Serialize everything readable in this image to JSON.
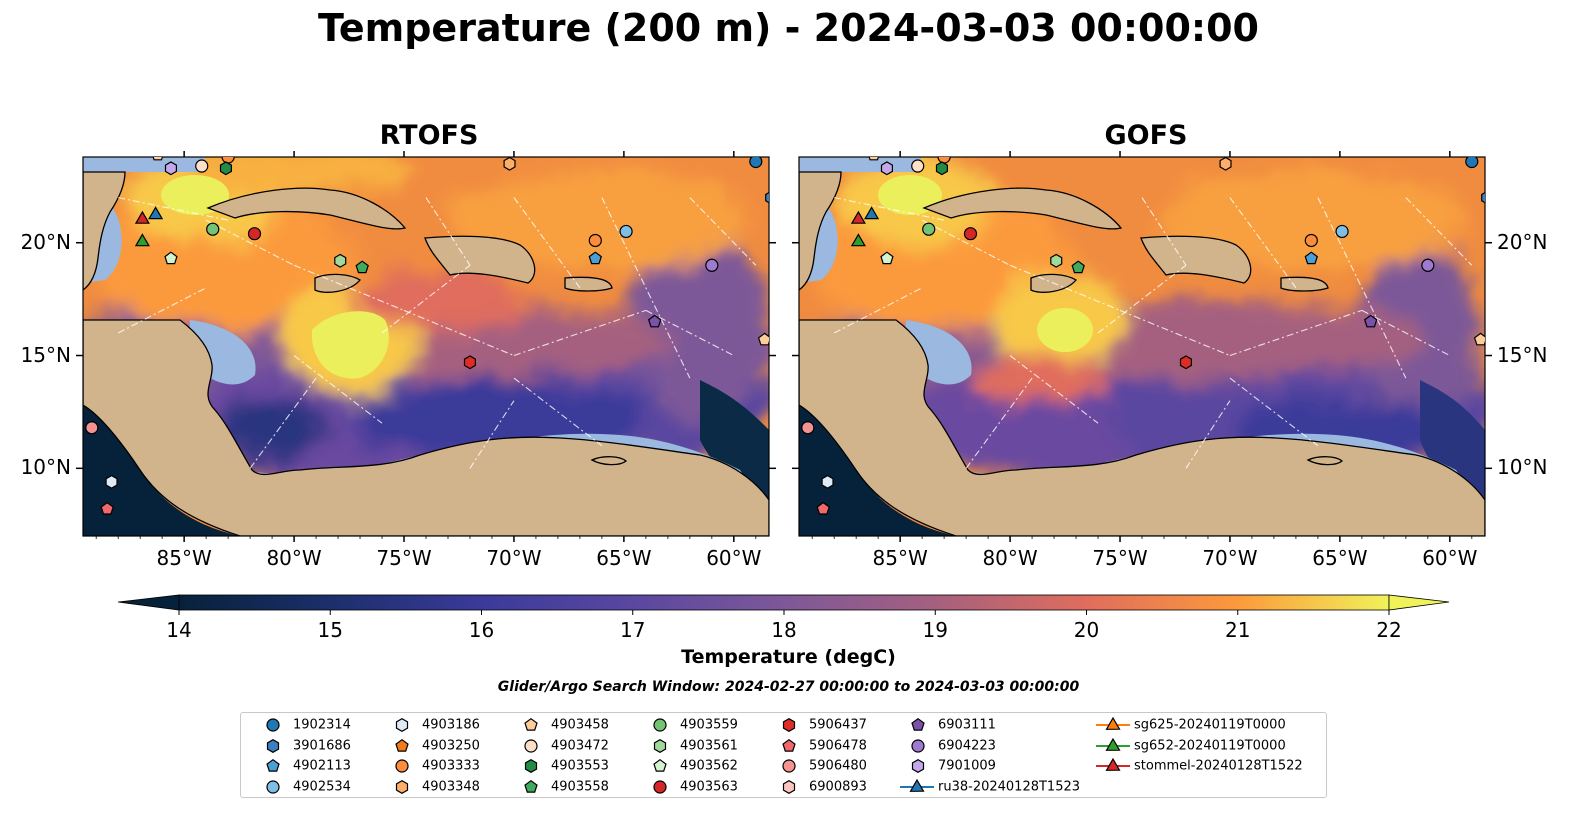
{
  "title": "Temperature (200 m) - 2024-03-03 00:00:00",
  "panels": [
    {
      "title": "RTOFS"
    },
    {
      "title": "GOFS"
    }
  ],
  "axes": {
    "x_ticks": [
      "85°W",
      "80°W",
      "75°W",
      "70°W",
      "65°W",
      "60°W"
    ],
    "y_ticks": [
      "20°N",
      "15°N",
      "10°N"
    ],
    "lon_range": [
      -89.6,
      -58.4
    ],
    "lat_range": [
      7.0,
      23.8
    ]
  },
  "colorbar": {
    "label": "Temperature (degC)",
    "ticks": [
      "14",
      "15",
      "16",
      "17",
      "18",
      "19",
      "20",
      "21",
      "22"
    ],
    "range": [
      14,
      22
    ],
    "step": 0.5,
    "colormap": "thermal",
    "extend": "both"
  },
  "search_window": "Glider/Argo Search Window: 2024-02-27 00:00:00 to 2024-03-03 00:00:00",
  "colors": {
    "land": "#d2b48c",
    "shelf": "#9ab8e0",
    "deep_cold": "#06223a"
  },
  "legend": {
    "columns": [
      [
        {
          "label": "1902314",
          "marker": "circle",
          "color": "#1f77b4"
        },
        {
          "label": "3901686",
          "marker": "hexagon",
          "color": "#3a7fbf"
        },
        {
          "label": "4902113",
          "marker": "pentagon",
          "color": "#4a9fd4"
        },
        {
          "label": "4902534",
          "marker": "circle",
          "color": "#7fbfe6"
        }
      ],
      [
        {
          "label": "4903186",
          "marker": "hexagon",
          "color": "#deeaf6"
        },
        {
          "label": "4903250",
          "marker": "pentagon",
          "color": "#f07b18"
        },
        {
          "label": "4903333",
          "marker": "circle",
          "color": "#fd8d3c"
        },
        {
          "label": "4903348",
          "marker": "hexagon",
          "color": "#fdae6b"
        }
      ],
      [
        {
          "label": "4903458",
          "marker": "pentagon",
          "color": "#fdcc9a"
        },
        {
          "label": "4903472",
          "marker": "circle",
          "color": "#fee0c8"
        },
        {
          "label": "4903553",
          "marker": "hexagon",
          "color": "#238b45"
        },
        {
          "label": "4903558",
          "marker": "pentagon",
          "color": "#41ab5d"
        }
      ],
      [
        {
          "label": "4903559",
          "marker": "circle",
          "color": "#74c476"
        },
        {
          "label": "4903561",
          "marker": "hexagon",
          "color": "#a1d99b"
        },
        {
          "label": "4903562",
          "marker": "pentagon",
          "color": "#d4f2cc"
        },
        {
          "label": "4903563",
          "marker": "circle",
          "color": "#d62728"
        }
      ],
      [
        {
          "label": "5906437",
          "marker": "hexagon",
          "color": "#de2d26"
        },
        {
          "label": "5906478",
          "marker": "pentagon",
          "color": "#f0686a"
        },
        {
          "label": "5906480",
          "marker": "circle",
          "color": "#f4938f"
        },
        {
          "label": "6900893",
          "marker": "hexagon",
          "color": "#fcc5c0"
        }
      ],
      [
        {
          "label": "6903111",
          "marker": "pentagon",
          "color": "#7b52ab"
        },
        {
          "label": "6904223",
          "marker": "circle",
          "color": "#9e7bd0"
        },
        {
          "label": "7901009",
          "marker": "hexagon",
          "color": "#c4a8ea"
        },
        {
          "label": "ru38-20240128T1523",
          "marker": "triangle-line",
          "color": "#1f77b4"
        }
      ],
      [
        {
          "label": "sg625-20240119T0000",
          "marker": "triangle-line",
          "color": "#ff7f0e"
        },
        {
          "label": "sg652-20240119T0000",
          "marker": "triangle-line",
          "color": "#2ca02c"
        },
        {
          "label": "stommel-20240128T1522",
          "marker": "triangle-line",
          "color": "#d62728"
        }
      ]
    ]
  },
  "observations": [
    {
      "id": "4903333",
      "lon": -83.0,
      "lat": 23.8
    },
    {
      "id": "4903458",
      "lon": -86.2,
      "lat": 23.9
    },
    {
      "id": "7901009",
      "lon": -85.6,
      "lat": 23.3
    },
    {
      "id": "4903472",
      "lon": -84.2,
      "lat": 23.4
    },
    {
      "id": "4903553",
      "lon": -83.1,
      "lat": 23.3
    },
    {
      "id": "4903348",
      "lon": -70.2,
      "lat": 23.5
    },
    {
      "id": "1902314",
      "lon": -59.0,
      "lat": 23.6
    },
    {
      "id": "3901686",
      "lon": -58.3,
      "lat": 22.0
    },
    {
      "id": "4903559",
      "lon": -83.7,
      "lat": 20.6
    },
    {
      "id": "4903563",
      "lon": -81.8,
      "lat": 20.4
    },
    {
      "id": "4903561",
      "lon": -77.9,
      "lat": 19.2
    },
    {
      "id": "4903558",
      "lon": -76.9,
      "lat": 18.9
    },
    {
      "id": "4903562",
      "lon": -85.6,
      "lat": 19.3
    },
    {
      "id": "4903333",
      "lon": -66.3,
      "lat": 20.1
    },
    {
      "id": "4902534",
      "lon": -64.9,
      "lat": 20.5
    },
    {
      "id": "4902113",
      "lon": -66.3,
      "lat": 19.3
    },
    {
      "id": "6904223",
      "lon": -61.0,
      "lat": 19.0
    },
    {
      "id": "6903111",
      "lon": -63.6,
      "lat": 16.5
    },
    {
      "id": "4903458",
      "lon": -58.6,
      "lat": 15.7
    },
    {
      "id": "5906437",
      "lon": -72.0,
      "lat": 14.7
    },
    {
      "id": "5906480",
      "lon": -89.2,
      "lat": 11.8
    },
    {
      "id": "4903186",
      "lon": -88.3,
      "lat": 9.4
    },
    {
      "id": "5906478",
      "lon": -88.5,
      "lat": 8.2
    },
    {
      "id": "stommel-20240128T1522",
      "lon": -86.9,
      "lat": 21.1
    },
    {
      "id": "ru38-20240128T1523",
      "lon": -86.3,
      "lat": 21.3
    },
    {
      "id": "sg652-20240119T0000",
      "lon": -86.9,
      "lat": 20.1
    }
  ]
}
